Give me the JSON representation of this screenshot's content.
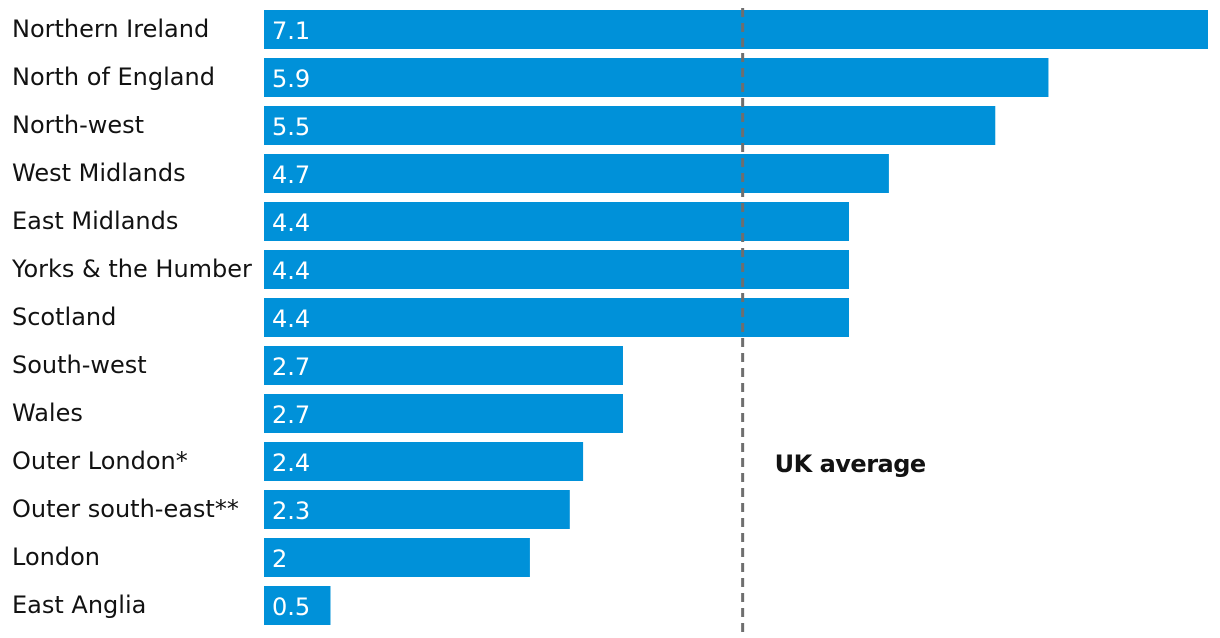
{
  "chart_data": {
    "type": "bar",
    "orientation": "horizontal",
    "categories": [
      "Northern Ireland",
      "North of England",
      "North-west",
      "West Midlands",
      "East Midlands",
      "Yorks & the Humber",
      "Scotland",
      "South-west",
      "Wales",
      "Outer London*",
      "Outer south-east**",
      "London",
      "East Anglia"
    ],
    "values": [
      7.1,
      5.9,
      5.5,
      4.7,
      4.4,
      4.4,
      4.4,
      2.7,
      2.7,
      2.4,
      2.3,
      2,
      0.5
    ],
    "value_labels": [
      "7.1",
      "5.9",
      "5.5",
      "4.7",
      "4.4",
      "4.4",
      "4.4",
      "2.7",
      "2.7",
      "2.4",
      "2.3",
      "2",
      "0.5"
    ],
    "reference_line": {
      "label": "UK average",
      "value": 3.6
    },
    "bar_color": "#0091d9",
    "reference_line_color": "#6e6e6e",
    "title": "",
    "xlabel": "",
    "ylabel": "",
    "xlim": [
      0,
      7.1
    ],
    "grid": false,
    "legend": "none"
  }
}
